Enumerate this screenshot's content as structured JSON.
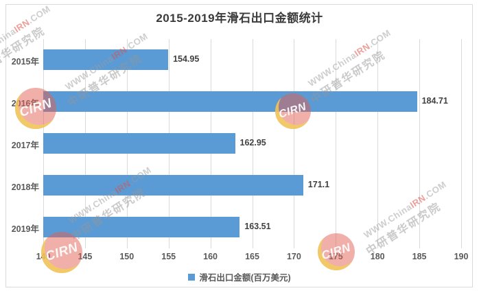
{
  "title": "2015-2019年滑石出口金额统计",
  "chart_data": {
    "type": "bar",
    "orientation": "horizontal",
    "title": "2015-2019年滑石出口金额统计",
    "categories": [
      "2015年",
      "2016年",
      "2017年",
      "2018年",
      "2019年"
    ],
    "series": [
      {
        "name": "滑石出口金额(百万美元)",
        "values": [
          154.95,
          184.71,
          162.95,
          171.1,
          163.51
        ],
        "labels": [
          "154.95",
          "184.71",
          "162.95",
          "171.1",
          "163.51"
        ],
        "color": "#5B9BD5"
      }
    ],
    "xlim": [
      140,
      190
    ],
    "x_ticks": [
      "140",
      "145",
      "150",
      "155",
      "160",
      "165",
      "170",
      "175",
      "180",
      "185",
      "190"
    ],
    "grid": true,
    "legend_position": "bottom"
  },
  "legend": {
    "items": [
      {
        "label": "滑石出口金额(百万美元)",
        "color": "#5B9BD5"
      }
    ]
  },
  "watermark": {
    "url_prefix": "WWW.China",
    "url_accent": "IRN",
    "url_suffix": ".COM",
    "cn_text": "中研普华研究院",
    "logo_text": "CIRN"
  },
  "colors": {
    "bar": "#5B9BD5",
    "gridline": "#D9D9D9",
    "frame_border": "#D9D9D9",
    "title_text": "#3A3A3A",
    "axis_text": "#595959",
    "value_text": "#404040",
    "watermark_red": "#DE4E44",
    "logo_yellow": "#F3D058"
  }
}
